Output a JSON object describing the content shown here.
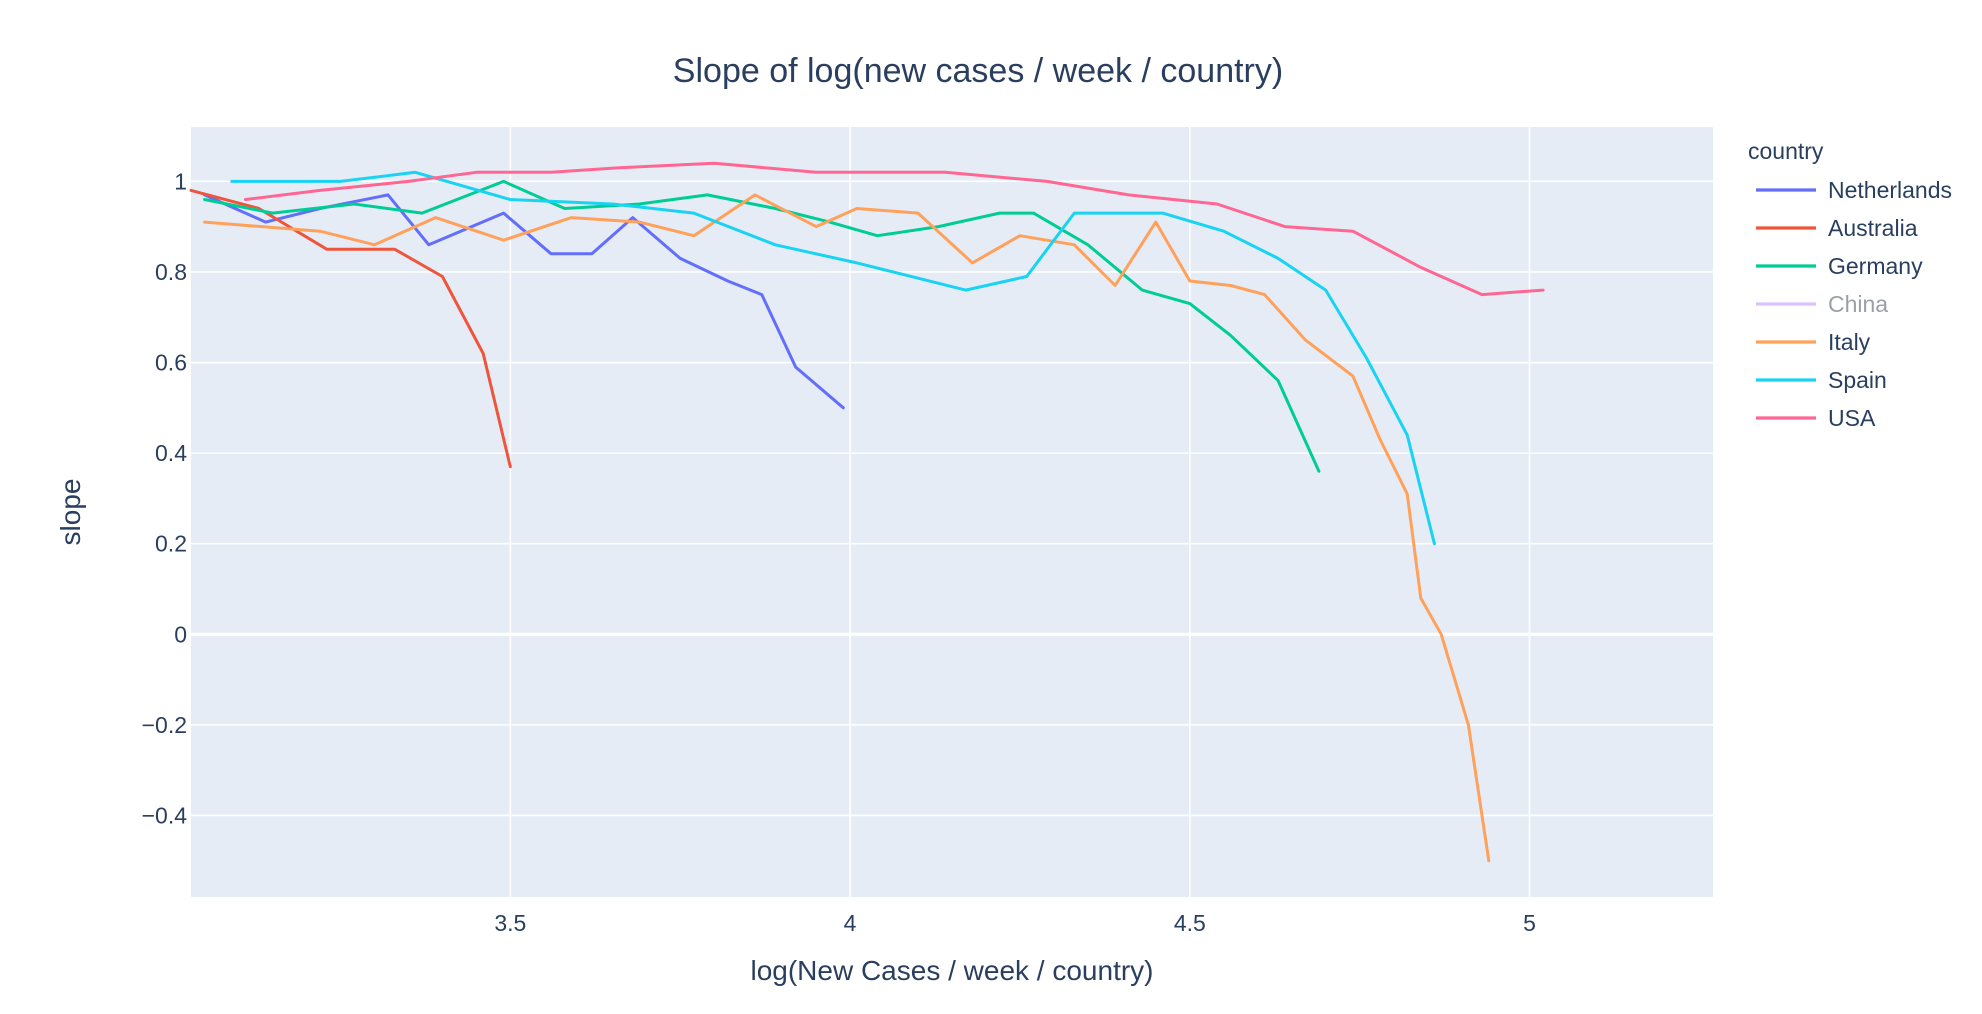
{
  "chart_data": {
    "type": "line",
    "title": "Slope of log(new cases / week / country)",
    "xlabel": "log(New Cases / week / country)",
    "ylabel": "slope",
    "xlim": [
      3.03,
      5.27
    ],
    "ylim": [
      -0.58,
      1.12
    ],
    "x_ticks": [
      3.5,
      4,
      4.5,
      5
    ],
    "x_tick_labels": [
      "3.5",
      "4",
      "4.5",
      "5"
    ],
    "y_ticks": [
      -0.4,
      -0.2,
      0,
      0.2,
      0.4,
      0.6,
      0.8,
      1
    ],
    "y_tick_labels": [
      "−0.4",
      "−0.2",
      "0",
      "0.2",
      "0.4",
      "0.6",
      "0.8",
      "1"
    ],
    "grid": true,
    "plot_background": "#e5ecf6",
    "legend": {
      "title": "country",
      "placement": "top-right outside plot"
    },
    "series": [
      {
        "name": "Netherlands",
        "color": "#636efa",
        "visible": true,
        "x": [
          3.05,
          3.14,
          3.22,
          3.32,
          3.38,
          3.49,
          3.56,
          3.62,
          3.68,
          3.75,
          3.82,
          3.87,
          3.92,
          3.99
        ],
        "y": [
          0.97,
          0.91,
          0.94,
          0.97,
          0.86,
          0.93,
          0.84,
          0.84,
          0.92,
          0.83,
          0.78,
          0.75,
          0.59,
          0.5
        ]
      },
      {
        "name": "Australia",
        "color": "#EF553B",
        "visible": true,
        "x": [
          3.03,
          3.13,
          3.23,
          3.33,
          3.4,
          3.46,
          3.5
        ],
        "y": [
          0.98,
          0.94,
          0.85,
          0.85,
          0.79,
          0.62,
          0.37
        ]
      },
      {
        "name": "Germany",
        "color": "#00cc96",
        "visible": true,
        "x": [
          3.05,
          3.15,
          3.27,
          3.37,
          3.49,
          3.58,
          3.69,
          3.79,
          3.89,
          3.97,
          4.04,
          4.13,
          4.22,
          4.27,
          4.35,
          4.43,
          4.5,
          4.56,
          4.63,
          4.69
        ],
        "y": [
          0.96,
          0.93,
          0.95,
          0.93,
          1.0,
          0.94,
          0.95,
          0.97,
          0.94,
          0.91,
          0.88,
          0.9,
          0.93,
          0.93,
          0.86,
          0.76,
          0.73,
          0.66,
          0.56,
          0.36
        ]
      },
      {
        "name": "China",
        "color": "#ab63fa",
        "visible": false,
        "x": [],
        "y": []
      },
      {
        "name": "Italy",
        "color": "#FFA15A",
        "visible": true,
        "x": [
          3.05,
          3.22,
          3.3,
          3.39,
          3.49,
          3.59,
          3.69,
          3.77,
          3.86,
          3.95,
          4.01,
          4.1,
          4.18,
          4.25,
          4.33,
          4.39,
          4.45,
          4.5,
          4.56,
          4.61,
          4.67,
          4.74,
          4.78,
          4.82,
          4.84,
          4.87,
          4.91,
          4.94
        ],
        "y": [
          0.91,
          0.89,
          0.86,
          0.92,
          0.87,
          0.92,
          0.91,
          0.88,
          0.97,
          0.9,
          0.94,
          0.93,
          0.82,
          0.88,
          0.86,
          0.77,
          0.91,
          0.78,
          0.77,
          0.75,
          0.65,
          0.57,
          0.43,
          0.31,
          0.08,
          0.0,
          -0.2,
          -0.5
        ]
      },
      {
        "name": "Spain",
        "color": "#19d3f3",
        "visible": true,
        "x": [
          3.09,
          3.25,
          3.36,
          3.5,
          3.65,
          3.77,
          3.89,
          4.01,
          4.17,
          4.26,
          4.33,
          4.42,
          4.46,
          4.55,
          4.63,
          4.7,
          4.76,
          4.82,
          4.86
        ],
        "y": [
          1.0,
          1.0,
          1.02,
          0.96,
          0.95,
          0.93,
          0.86,
          0.82,
          0.76,
          0.79,
          0.93,
          0.93,
          0.93,
          0.89,
          0.83,
          0.76,
          0.61,
          0.44,
          0.2
        ]
      },
      {
        "name": "USA",
        "color": "#FF6692",
        "visible": true,
        "x": [
          3.11,
          3.22,
          3.35,
          3.45,
          3.56,
          3.66,
          3.8,
          3.95,
          4.14,
          4.29,
          4.41,
          4.54,
          4.64,
          4.74,
          4.84,
          4.93,
          5.02
        ],
        "y": [
          0.96,
          0.98,
          1.0,
          1.02,
          1.02,
          1.03,
          1.04,
          1.02,
          1.02,
          1.0,
          0.97,
          0.95,
          0.9,
          0.89,
          0.81,
          0.75,
          0.76
        ]
      }
    ]
  }
}
